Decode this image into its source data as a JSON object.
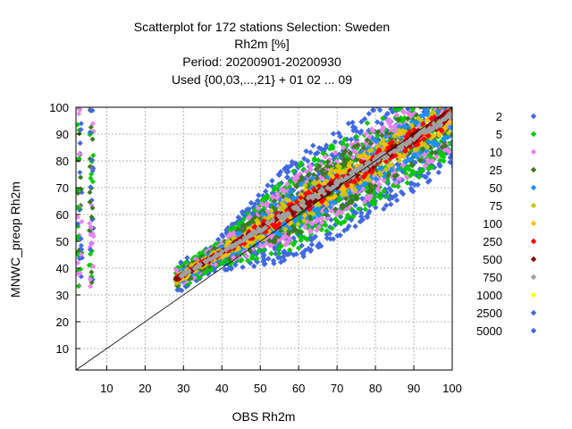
{
  "chart_data": {
    "type": "scatter",
    "title_lines": [
      "Scatterplot for  172 stations Selection: Sweden",
      "Rh2m [%]",
      "Period: 20200901-20200930",
      "Used {00,03,...,21} + 01 02 ... 09"
    ],
    "xlabel": "OBS Rh2m",
    "ylabel": "MNWC_preop Rh2m",
    "xlim": [
      2,
      100
    ],
    "ylim": [
      2,
      100
    ],
    "x_ticks": [
      "10",
      "20",
      "30",
      "40",
      "50",
      "60",
      "70",
      "80",
      "90",
      "100"
    ],
    "y_ticks": [
      "10",
      "20",
      "30",
      "40",
      "50",
      "60",
      "70",
      "80",
      "90",
      "100"
    ],
    "grid": true,
    "diagonal_line": true,
    "legend_position": "right",
    "density_levels": [
      {
        "label": "2",
        "color": "#4169e1",
        "half_width": 20
      },
      {
        "label": "5",
        "color": "#00c800",
        "half_width": 16
      },
      {
        "label": "10",
        "color": "#ee82ee",
        "half_width": 13
      },
      {
        "label": "25",
        "color": "#3c7a1e",
        "half_width": 10.5
      },
      {
        "label": "50",
        "color": "#1e90ff",
        "half_width": 8
      },
      {
        "label": "75",
        "color": "#c8c800",
        "half_width": 6.5
      },
      {
        "label": "100",
        "color": "#ffc000",
        "half_width": 5
      },
      {
        "label": "250",
        "color": "#ff0000",
        "half_width": 3.5
      },
      {
        "label": "500",
        "color": "#8b0000",
        "half_width": 1.8
      },
      {
        "label": "750",
        "color": "#a0a0a0",
        "half_width": 1.2
      },
      {
        "label": "1000",
        "color": "#ffff00",
        "half_width": 0.9
      },
      {
        "label": "2500",
        "color": "#4169e1",
        "half_width": 0.6
      },
      {
        "label": "5000",
        "color": "#4169e1",
        "half_width": 0.4
      }
    ]
  }
}
